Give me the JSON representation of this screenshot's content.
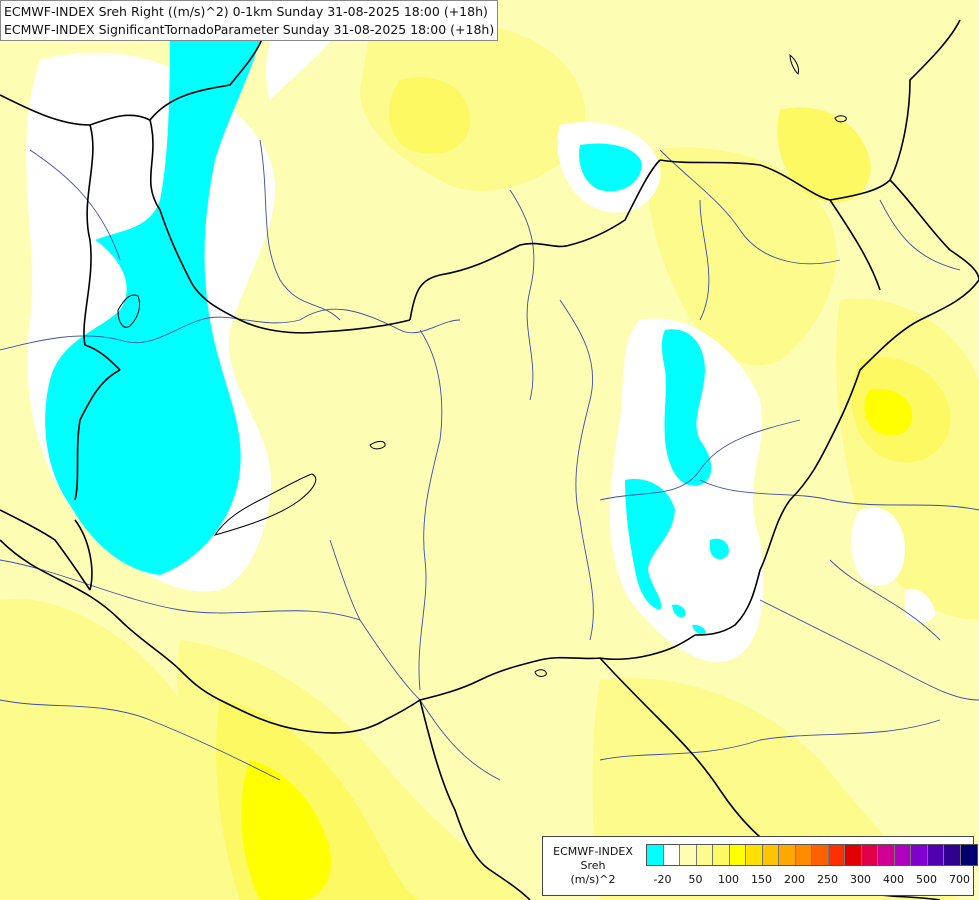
{
  "header": {
    "line1": "ECMWF-INDEX Sreh Right ((m/s)^2) 0-1km Sunday 31-08-2025 18:00 (+18h)",
    "line2": "ECMWF-INDEX SignificantTornadoParameter Sunday 31-08-2025 18:00 (+18h)"
  },
  "legend": {
    "title_lines": [
      "ECMWF-INDEX",
      "Sreh",
      "(m/s)^2"
    ],
    "colors": [
      "#00ffff",
      "#ffffff",
      "#fefdb4",
      "#fdfb8c",
      "#fcf962",
      "#ffff00",
      "#ffe000",
      "#ffc400",
      "#ffa800",
      "#ff8c00",
      "#ff6000",
      "#ff3000",
      "#e00000",
      "#e0004a",
      "#d00090",
      "#b000c0",
      "#8000d0",
      "#5000b0",
      "#300090",
      "#000070"
    ],
    "ticks": [
      "-20",
      "50",
      "100",
      "150",
      "200",
      "250",
      "300",
      "400",
      "500",
      "700"
    ]
  },
  "map": {
    "colors": {
      "background": "#fefdb4",
      "level_light": "#fdfb8c",
      "level_mid": "#fcf962",
      "level_high": "#ffff00",
      "negative": "#00ffff",
      "near_zero": "#ffffff",
      "rivers": "#3a4ea8",
      "borders": "#000000"
    }
  }
}
